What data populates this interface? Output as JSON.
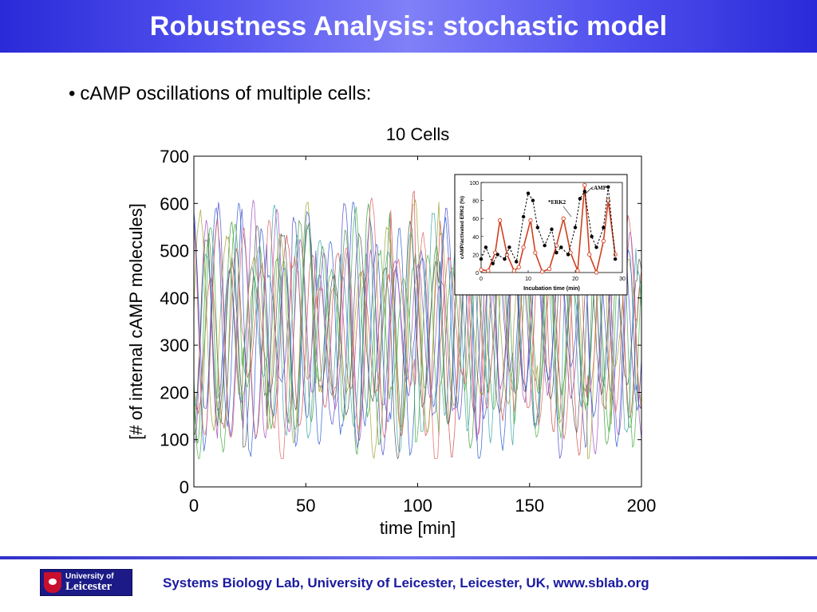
{
  "slide": {
    "title": "Robustness Analysis: stochastic model",
    "bullet": "cAMP oscillations of multiple cells:",
    "footer": "Systems Biology Lab, University of Leicester, Leicester, UK, www.sblab.org",
    "logo": {
      "line1": "University of",
      "line2": "Leicester"
    }
  },
  "chart_data": [
    {
      "type": "line",
      "title": "10 Cells",
      "xlabel": "time [min]",
      "ylabel": "[# of internal cAMP molecules]",
      "xlim": [
        0,
        200
      ],
      "ylim": [
        0,
        700
      ],
      "xticks": [
        0,
        50,
        100,
        150,
        200
      ],
      "yticks": [
        0,
        100,
        200,
        300,
        400,
        500,
        600,
        700
      ],
      "series_count": 10,
      "series_colors": [
        "#4a4acd",
        "#3a9a3a",
        "#d04a4a",
        "#3aa5a5",
        "#a04ac0",
        "#a0a030",
        "#555555",
        "#2a5ad0",
        "#40b040",
        "#e06060"
      ],
      "oscillation_period_min": 11,
      "value_range_approx": [
        80,
        650
      ],
      "grid": false,
      "legend": "none"
    },
    {
      "type": "line",
      "title": "",
      "xlabel": "Incubation time (min)",
      "ylabel": "cAMP/activated ERK2 (%)",
      "xlim": [
        0,
        30
      ],
      "ylim": [
        0,
        100
      ],
      "xticks": [
        0,
        10,
        20,
        30
      ],
      "yticks": [
        0,
        20,
        40,
        60,
        80,
        100
      ],
      "annotations": [
        "cAMP",
        "*ERK2"
      ],
      "series": [
        {
          "name": "cAMP",
          "color": "#d04020",
          "x": [
            0,
            1.5,
            3,
            4,
            5.5,
            7,
            8,
            9,
            10.5,
            11.5,
            13,
            14.5,
            16,
            17.5,
            19,
            20.5,
            22,
            23,
            24.5,
            26,
            27,
            28.5
          ],
          "y": [
            3,
            2,
            22,
            58,
            20,
            2,
            6,
            28,
            58,
            22,
            1,
            4,
            30,
            60,
            22,
            2,
            97,
            20,
            0,
            35,
            80,
            20
          ]
        },
        {
          "name": "*ERK2",
          "color": "#000000",
          "x": [
            0,
            1,
            2.5,
            3.5,
            5,
            6,
            7.5,
            9,
            10,
            11,
            12,
            13.5,
            15,
            16,
            17,
            18.5,
            20,
            21,
            22,
            23.5,
            24.5,
            26,
            27,
            28.5
          ],
          "y": [
            15,
            28,
            10,
            20,
            15,
            28,
            12,
            62,
            88,
            80,
            50,
            30,
            48,
            22,
            28,
            20,
            50,
            82,
            90,
            40,
            28,
            50,
            95,
            15
          ]
        }
      ]
    }
  ]
}
